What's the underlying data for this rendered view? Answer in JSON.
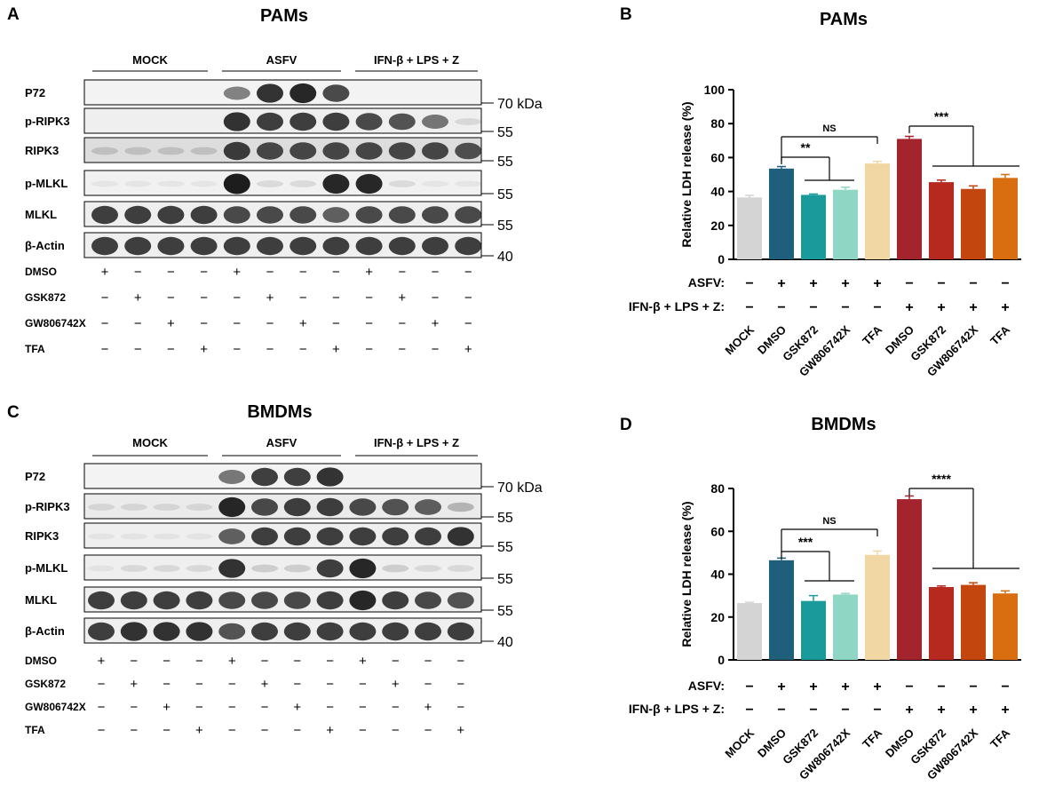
{
  "panels": {
    "A": {
      "letter": "A",
      "title": "PAMs"
    },
    "B": {
      "letter": "B",
      "title": "PAMs"
    },
    "C": {
      "letter": "C",
      "title": "BMDMs"
    },
    "D": {
      "letter": "D",
      "title": "BMDMs"
    }
  },
  "blot_groups": [
    "MOCK",
    "ASFV",
    "IFN-β + LPS + Z"
  ],
  "blot_treatments": {
    "labels": [
      "DMSO",
      "GSK872",
      "GW806742X",
      "TFA"
    ],
    "rows": [
      [
        "+",
        "−",
        "−",
        "−",
        "+",
        "−",
        "−",
        "−",
        "+",
        "−",
        "−",
        "−"
      ],
      [
        "−",
        "+",
        "−",
        "−",
        "−",
        "+",
        "−",
        "−",
        "−",
        "+",
        "−",
        "−"
      ],
      [
        "−",
        "−",
        "+",
        "−",
        "−",
        "−",
        "+",
        "−",
        "−",
        "−",
        "+",
        "−"
      ],
      [
        "−",
        "−",
        "−",
        "+",
        "−",
        "−",
        "−",
        "+",
        "−",
        "−",
        "−",
        "+"
      ]
    ]
  },
  "blot_A": {
    "rows": [
      {
        "label": "P72",
        "marker": "70 kDa",
        "intensities": [
          0,
          0,
          0,
          0,
          0.5,
          0.85,
          0.9,
          0.75,
          0,
          0,
          0,
          0
        ],
        "background": 0.02
      },
      {
        "label": "p-RIPK3",
        "marker": "55",
        "intensities": [
          0,
          0,
          0,
          0,
          0.85,
          0.8,
          0.8,
          0.8,
          0.75,
          0.7,
          0.55,
          0.1
        ],
        "background": 0.05
      },
      {
        "label": "RIPK3",
        "marker": "55",
        "intensities": [
          0.15,
          0.15,
          0.15,
          0.15,
          0.8,
          0.75,
          0.75,
          0.75,
          0.75,
          0.75,
          0.75,
          0.7
        ],
        "background": 0.2
      },
      {
        "label": "p-MLKL",
        "marker": "55",
        "intensities": [
          0.05,
          0.05,
          0.05,
          0.05,
          0.95,
          0.1,
          0.1,
          0.9,
          0.9,
          0.1,
          0.05,
          0.05
        ],
        "background": 0.03
      },
      {
        "label": "MLKL",
        "marker": "55",
        "intensities": [
          0.8,
          0.8,
          0.8,
          0.8,
          0.75,
          0.75,
          0.75,
          0.65,
          0.75,
          0.75,
          0.75,
          0.75
        ],
        "background": 0.05
      },
      {
        "label": "β-Actin",
        "marker": "40",
        "intensities": [
          0.8,
          0.8,
          0.8,
          0.8,
          0.8,
          0.8,
          0.8,
          0.8,
          0.8,
          0.8,
          0.8,
          0.8
        ],
        "background": 0.05
      }
    ]
  },
  "blot_C": {
    "rows": [
      {
        "label": "P72",
        "marker": "70 kDa",
        "intensities": [
          0,
          0,
          0,
          0,
          0.55,
          0.8,
          0.8,
          0.85,
          0,
          0,
          0,
          0
        ],
        "background": 0.02
      },
      {
        "label": "p-RIPK3",
        "marker": "55",
        "intensities": [
          0.1,
          0.1,
          0.1,
          0.1,
          0.9,
          0.75,
          0.8,
          0.8,
          0.75,
          0.7,
          0.65,
          0.25
        ],
        "background": 0.08
      },
      {
        "label": "RIPK3",
        "marker": "55",
        "intensities": [
          0.05,
          0.05,
          0.05,
          0.05,
          0.65,
          0.8,
          0.8,
          0.8,
          0.8,
          0.8,
          0.8,
          0.85
        ],
        "background": 0.05
      },
      {
        "label": "p-MLKL",
        "marker": "55",
        "intensities": [
          0.05,
          0.1,
          0.1,
          0.1,
          0.85,
          0.15,
          0.15,
          0.8,
          0.9,
          0.15,
          0.1,
          0.1
        ],
        "background": 0.05
      },
      {
        "label": "MLKL",
        "marker": "55",
        "intensities": [
          0.8,
          0.8,
          0.8,
          0.8,
          0.75,
          0.75,
          0.75,
          0.8,
          0.9,
          0.8,
          0.75,
          0.7
        ],
        "background": 0.05
      },
      {
        "label": "β-Actin",
        "marker": "40",
        "intensities": [
          0.8,
          0.85,
          0.85,
          0.85,
          0.7,
          0.8,
          0.8,
          0.8,
          0.8,
          0.8,
          0.8,
          0.8
        ],
        "background": 0.05
      }
    ]
  },
  "bar_treatments": {
    "asfv_label": "ASFV:",
    "ifn_label": "IFN-β + LPS + Z:",
    "asfv": [
      "−",
      "+",
      "+",
      "+",
      "+",
      "−",
      "−",
      "−",
      "−"
    ],
    "ifn": [
      "−",
      "−",
      "−",
      "−",
      "−",
      "+",
      "+",
      "+",
      "+"
    ]
  },
  "chart_data": [
    {
      "type": "bar",
      "title": "PAMs",
      "ylabel": "Relative LDH release (%)",
      "ylim": [
        0,
        100
      ],
      "yticks": [
        0,
        20,
        40,
        60,
        80,
        100
      ],
      "categories": [
        "MOCK",
        "DMSO",
        "GSK872",
        "GW806742X",
        "TFA",
        "DMSO",
        "GSK872",
        "GW806742X",
        "TFA"
      ],
      "values": [
        36.5,
        53.5,
        38,
        41,
        56.5,
        71,
        45.5,
        41.5,
        48
      ],
      "errors": [
        1.2,
        1.2,
        0.5,
        1.5,
        1.2,
        1.5,
        1.2,
        1.8,
        2
      ],
      "colors": [
        "#d4d4d4",
        "#1f5f7c",
        "#1a9a9a",
        "#8fd6c4",
        "#f1d7a3",
        "#a3242c",
        "#b6291e",
        "#c4460f",
        "#d86e10"
      ],
      "significance": [
        {
          "label": "NS",
          "from": 1,
          "to": 4
        },
        {
          "label": "**",
          "from": 1,
          "to_group": [
            2,
            3
          ]
        },
        {
          "label": "***",
          "from": 5,
          "to_group": [
            6,
            8
          ]
        }
      ]
    },
    {
      "type": "bar",
      "title": "BMDMs",
      "ylabel": "Relative LDH release (%)",
      "ylim": [
        0,
        80
      ],
      "yticks": [
        0,
        20,
        40,
        60,
        80
      ],
      "categories": [
        "MOCK",
        "DMSO",
        "GSK872",
        "GW806742X",
        "TFA",
        "DMSO",
        "GSK872",
        "GW806742X",
        "TFA"
      ],
      "values": [
        26.5,
        46.5,
        27.5,
        30.5,
        49,
        75,
        34,
        35,
        31
      ],
      "errors": [
        0.4,
        1,
        2.5,
        0.5,
        1.8,
        1.5,
        0.5,
        1,
        1.2
      ],
      "colors": [
        "#d4d4d4",
        "#1f5f7c",
        "#1a9a9a",
        "#8fd6c4",
        "#f1d7a3",
        "#a3242c",
        "#b6291e",
        "#c4460f",
        "#d86e10"
      ],
      "significance": [
        {
          "label": "NS",
          "from": 1,
          "to": 4
        },
        {
          "label": "***",
          "from": 1,
          "to_group": [
            2,
            3
          ]
        },
        {
          "label": "****",
          "from": 5,
          "to_group": [
            6,
            8
          ]
        }
      ]
    }
  ]
}
